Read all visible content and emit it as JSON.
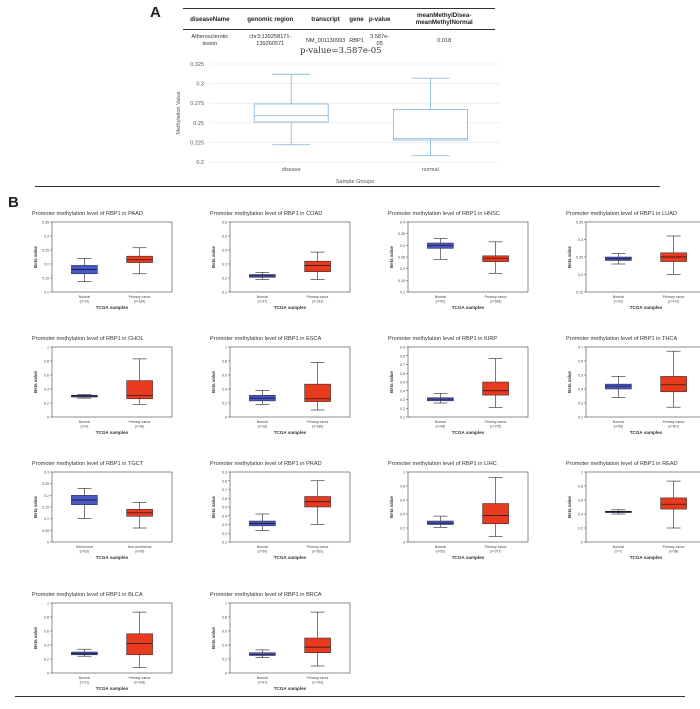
{
  "panel_a": {
    "letter": "A",
    "table": {
      "headers": [
        "diseaseName",
        "genomic region",
        "transcript",
        "gene",
        "p-value",
        "meanMethylDisea-meanMethylNormal"
      ],
      "row": [
        "Atherosclerotic lesion",
        "chr3:139258171-139260571",
        "NM_001130993",
        "RBP1",
        "3.587e-05",
        "0.018"
      ]
    },
    "pvalue_label": "p-value=3.587e-05"
  },
  "panel_b": {
    "letter": "B"
  },
  "colors": {
    "normal": "#4a58c9",
    "tumor": "#e83a1f",
    "main_box": "#7fb3d8"
  },
  "chart_data": [
    {
      "type": "boxplot",
      "title": "",
      "xlabel": "Sample Groups",
      "ylabel": "Methylation Value",
      "ylim": [
        0.2,
        0.325
      ],
      "yticks": [
        0.2,
        0.225,
        0.25,
        0.275,
        0.3,
        0.325
      ],
      "grid": true,
      "categories": [
        "disease",
        "normal"
      ],
      "boxes": [
        {
          "min": 0.222,
          "q1": 0.251,
          "median": 0.259,
          "q3": 0.274,
          "max": 0.312
        },
        {
          "min": 0.208,
          "q1": 0.228,
          "median": 0.23,
          "q3": 0.267,
          "max": 0.307
        }
      ]
    },
    {
      "type": "boxplot",
      "title": "Promoter methylation level of RBP1 in PAAD",
      "xlabel": "TCGA samples",
      "ylabel": "Beta value",
      "ylim": [
        0.1,
        0.35
      ],
      "yticks": [
        0.1,
        0.15,
        0.2,
        0.25,
        0.3,
        0.35
      ],
      "categories": [
        "Normal",
        "Primary tumor"
      ],
      "counts": [
        "(n=10)",
        "(n=184)"
      ],
      "boxes": [
        {
          "min": 0.137,
          "q1": 0.165,
          "median": 0.18,
          "q3": 0.195,
          "max": 0.22
        },
        {
          "min": 0.165,
          "q1": 0.205,
          "median": 0.215,
          "q3": 0.228,
          "max": 0.258
        }
      ]
    },
    {
      "type": "boxplot",
      "title": "Promoter methylation level of RBP1 in COAD",
      "xlabel": "TCGA samples",
      "ylabel": "Beta value",
      "ylim": [
        0.1,
        0.6
      ],
      "yticks": [
        0.1,
        0.2,
        0.3,
        0.4,
        0.5,
        0.6
      ],
      "categories": [
        "Normal",
        "Primary tumor"
      ],
      "counts": [
        "(n=37)",
        "(n=313)"
      ],
      "boxes": [
        {
          "min": 0.19,
          "q1": 0.205,
          "median": 0.215,
          "q3": 0.225,
          "max": 0.24
        },
        {
          "min": 0.19,
          "q1": 0.245,
          "median": 0.29,
          "q3": 0.32,
          "max": 0.385
        }
      ]
    },
    {
      "type": "boxplot",
      "title": "Promoter methylation level of RBP1 in HNSC",
      "xlabel": "TCGA samples",
      "ylabel": "Beta value",
      "ylim": [
        0.1,
        0.4
      ],
      "yticks": [
        0.1,
        0.15,
        0.2,
        0.25,
        0.3,
        0.35,
        0.4
      ],
      "categories": [
        "Normal",
        "Primary tumor"
      ],
      "counts": [
        "(n=50)",
        "(n=528)"
      ],
      "boxes": [
        {
          "min": 0.24,
          "q1": 0.287,
          "median": 0.3,
          "q3": 0.31,
          "max": 0.33
        },
        {
          "min": 0.18,
          "q1": 0.23,
          "median": 0.245,
          "q3": 0.255,
          "max": 0.315
        }
      ]
    },
    {
      "type": "boxplot",
      "title": "Promoter methylation level of RBP1 in LUAD",
      "xlabel": "TCGA samples",
      "ylabel": "Beta value",
      "ylim": [
        0.15,
        0.35
      ],
      "yticks": [
        0.15,
        0.2,
        0.25,
        0.3,
        0.35
      ],
      "categories": [
        "Normal",
        "Primary tumor"
      ],
      "counts": [
        "(n=32)",
        "(n=473)"
      ],
      "boxes": [
        {
          "min": 0.23,
          "q1": 0.24,
          "median": 0.245,
          "q3": 0.25,
          "max": 0.26
        },
        {
          "min": 0.2,
          "q1": 0.237,
          "median": 0.25,
          "q3": 0.262,
          "max": 0.31
        }
      ]
    },
    {
      "type": "boxplot",
      "title": "Promoter methylation level of RBP1 in CHOL",
      "xlabel": "TCGA samples",
      "ylabel": "Beta value",
      "ylim": [
        0,
        1
      ],
      "yticks": [
        0,
        0.2,
        0.4,
        0.6,
        0.8,
        1
      ],
      "categories": [
        "Normal",
        "Primary tumor"
      ],
      "counts": [
        "(n=9)",
        "(n=36)"
      ],
      "boxes": [
        {
          "min": 0.27,
          "q1": 0.285,
          "median": 0.3,
          "q3": 0.31,
          "max": 0.32
        },
        {
          "min": 0.18,
          "q1": 0.26,
          "median": 0.31,
          "q3": 0.52,
          "max": 0.83
        }
      ]
    },
    {
      "type": "boxplot",
      "title": "Promoter methylation level of RBP1 in ESCA",
      "xlabel": "TCGA samples",
      "ylabel": "Beta value",
      "ylim": [
        0,
        1
      ],
      "yticks": [
        0,
        0.2,
        0.4,
        0.6,
        0.8,
        1
      ],
      "categories": [
        "Normal",
        "Primary tumor"
      ],
      "counts": [
        "(n=16)",
        "(n=185)"
      ],
      "boxes": [
        {
          "min": 0.18,
          "q1": 0.23,
          "median": 0.27,
          "q3": 0.31,
          "max": 0.38
        },
        {
          "min": 0.1,
          "q1": 0.22,
          "median": 0.26,
          "q3": 0.47,
          "max": 0.78
        }
      ]
    },
    {
      "type": "boxplot",
      "title": "Promoter methylation level of RBP1 in KIRP",
      "xlabel": "TCGA samples",
      "ylabel": "Beta value",
      "ylim": [
        0.1,
        0.9
      ],
      "yticks": [
        0.1,
        0.2,
        0.3,
        0.4,
        0.5,
        0.6,
        0.7,
        0.8,
        0.9
      ],
      "categories": [
        "Normal",
        "Primary tumor"
      ],
      "counts": [
        "(n=45)",
        "(n=275)"
      ],
      "boxes": [
        {
          "min": 0.26,
          "q1": 0.285,
          "median": 0.305,
          "q3": 0.32,
          "max": 0.37
        },
        {
          "min": 0.21,
          "q1": 0.35,
          "median": 0.4,
          "q3": 0.5,
          "max": 0.77
        }
      ]
    },
    {
      "type": "boxplot",
      "title": "Promoter methylation level of RBP1 in THCA",
      "xlabel": "TCGA samples",
      "ylabel": "Beta value",
      "ylim": [
        0.2,
        0.7
      ],
      "yticks": [
        0.2,
        0.3,
        0.4,
        0.5,
        0.6,
        0.7
      ],
      "categories": [
        "Normal",
        "Primary tumor"
      ],
      "counts": [
        "(n=56)",
        "(n=507)"
      ],
      "boxes": [
        {
          "min": 0.34,
          "q1": 0.4,
          "median": 0.42,
          "q3": 0.435,
          "max": 0.49
        },
        {
          "min": 0.27,
          "q1": 0.38,
          "median": 0.43,
          "q3": 0.49,
          "max": 0.67
        }
      ]
    },
    {
      "type": "boxplot",
      "title": "Promoter methylation level of RBP1 in TGCT",
      "xlabel": "TCGA samples",
      "ylabel": "Beta value",
      "ylim": [
        0,
        0.3
      ],
      "yticks": [
        0,
        0.05,
        0.1,
        0.15,
        0.2,
        0.25,
        0.3
      ],
      "categories": [
        "Seminoma",
        "Non-seminoma"
      ],
      "counts": [
        "(n=63)",
        "(n=69)"
      ],
      "boxes": [
        {
          "min": 0.1,
          "q1": 0.16,
          "median": 0.18,
          "q3": 0.2,
          "max": 0.23
        },
        {
          "min": 0.06,
          "q1": 0.11,
          "median": 0.125,
          "q3": 0.14,
          "max": 0.17
        }
      ]
    },
    {
      "type": "boxplot",
      "title": "Promoter methylation level of RBP1 in PRAD",
      "xlabel": "TCGA samples",
      "ylabel": "Beta value",
      "ylim": [
        0.1,
        0.9
      ],
      "yticks": [
        0.1,
        0.2,
        0.3,
        0.4,
        0.5,
        0.6,
        0.7,
        0.8,
        0.9
      ],
      "categories": [
        "Normal",
        "Primary tumor"
      ],
      "counts": [
        "(n=50)",
        "(n=502)"
      ],
      "boxes": [
        {
          "min": 0.23,
          "q1": 0.285,
          "median": 0.31,
          "q3": 0.34,
          "max": 0.42
        },
        {
          "min": 0.3,
          "q1": 0.5,
          "median": 0.56,
          "q3": 0.62,
          "max": 0.8
        }
      ]
    },
    {
      "type": "boxplot",
      "title": "Promoter methylation level of RBP1 in LIHC",
      "xlabel": "TCGA samples",
      "ylabel": "Beta value",
      "ylim": [
        0,
        1
      ],
      "yticks": [
        0,
        0.2,
        0.4,
        0.6,
        0.8,
        1
      ],
      "categories": [
        "Normal",
        "Primary tumor"
      ],
      "counts": [
        "(n=50)",
        "(n=377)"
      ],
      "boxes": [
        {
          "min": 0.21,
          "q1": 0.25,
          "median": 0.27,
          "q3": 0.3,
          "max": 0.37
        },
        {
          "min": 0.08,
          "q1": 0.26,
          "median": 0.38,
          "q3": 0.55,
          "max": 0.92
        }
      ]
    },
    {
      "type": "boxplot",
      "title": "Promoter methylation level of RBP1 in READ",
      "xlabel": "TCGA samples",
      "ylabel": "Beta value",
      "ylim": [
        0,
        1
      ],
      "yticks": [
        0,
        0.2,
        0.4,
        0.6,
        0.8,
        1
      ],
      "categories": [
        "Normal",
        "Primary tumor"
      ],
      "counts": [
        "(n=7)",
        "(n=98)"
      ],
      "boxes": [
        {
          "min": 0.4,
          "q1": 0.42,
          "median": 0.43,
          "q3": 0.44,
          "max": 0.46
        },
        {
          "min": 0.2,
          "q1": 0.47,
          "median": 0.54,
          "q3": 0.63,
          "max": 0.87
        }
      ]
    },
    {
      "type": "boxplot",
      "title": "Promoter methylation level of RBP1 in BLCA",
      "xlabel": "TCGA samples",
      "ylabel": "Beta value",
      "ylim": [
        0,
        1
      ],
      "yticks": [
        0,
        0.2,
        0.4,
        0.6,
        0.8,
        1
      ],
      "categories": [
        "Normal",
        "Primary tumor"
      ],
      "counts": [
        "(n=21)",
        "(n=418)"
      ],
      "boxes": [
        {
          "min": 0.24,
          "q1": 0.26,
          "median": 0.275,
          "q3": 0.3,
          "max": 0.34
        },
        {
          "min": 0.08,
          "q1": 0.26,
          "median": 0.42,
          "q3": 0.56,
          "max": 0.87
        }
      ]
    },
    {
      "type": "boxplot",
      "title": "Promoter methylation level of RBP1 in BRCA",
      "xlabel": "TCGA samples",
      "ylabel": "Beta value",
      "ylim": [
        0,
        1
      ],
      "yticks": [
        0,
        0.2,
        0.4,
        0.6,
        0.8,
        1
      ],
      "categories": [
        "Normal",
        "Primary tumor"
      ],
      "counts": [
        "(n=97)",
        "(n=793)"
      ],
      "boxes": [
        {
          "min": 0.22,
          "q1": 0.25,
          "median": 0.265,
          "q3": 0.29,
          "max": 0.33
        },
        {
          "min": 0.1,
          "q1": 0.29,
          "median": 0.37,
          "q3": 0.5,
          "max": 0.87
        }
      ]
    }
  ]
}
